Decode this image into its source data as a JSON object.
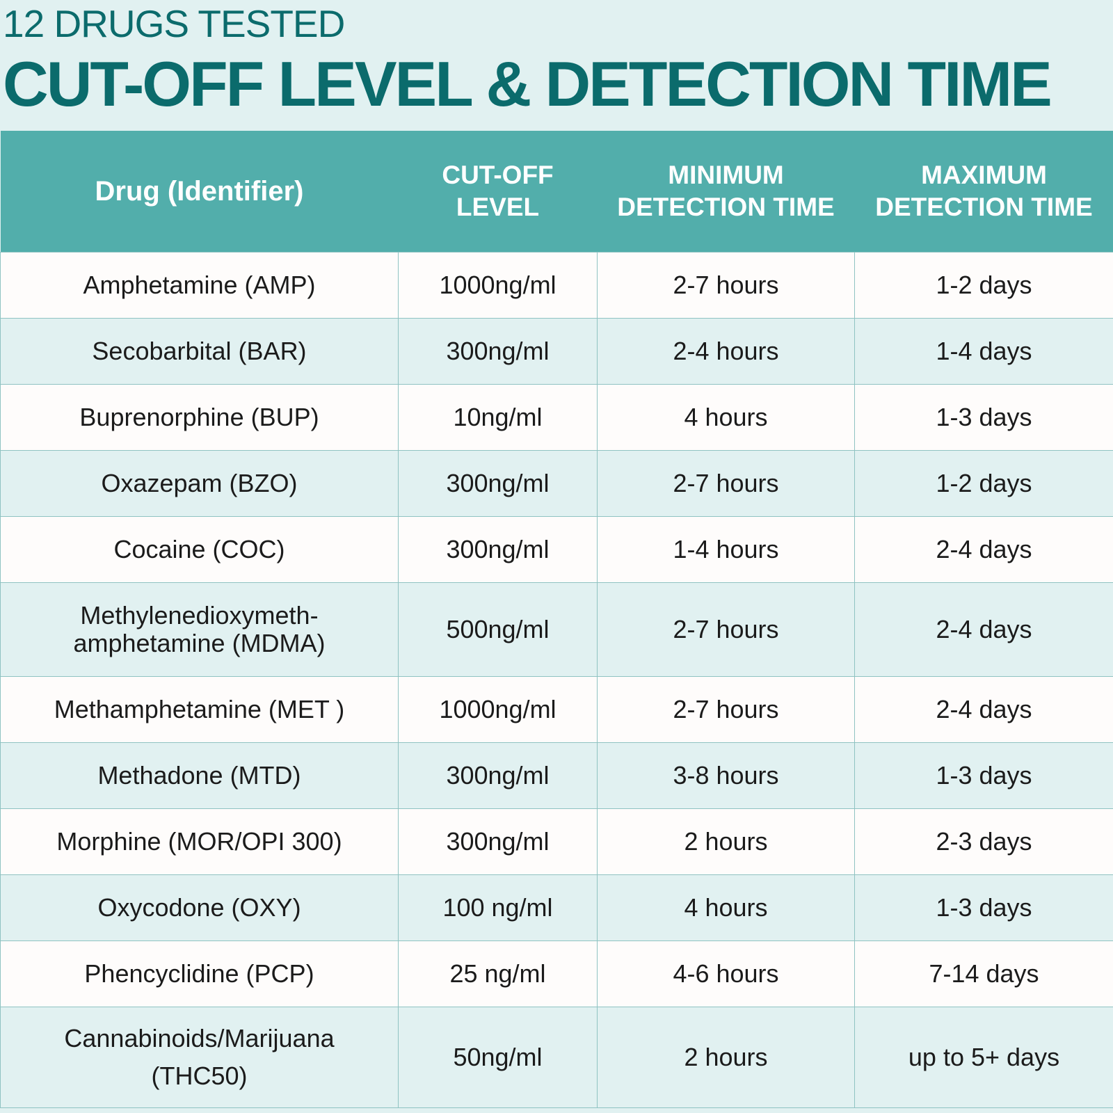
{
  "header": {
    "subtitle": "12 DRUGS TESTED",
    "title": "CUT-OFF LEVEL & DETECTION TIME"
  },
  "table": {
    "columns": [
      {
        "line1": "Drug (Identifier)",
        "line2": ""
      },
      {
        "line1": "CUT-OFF",
        "line2": "LEVEL"
      },
      {
        "line1": "MINIMUM",
        "line2": "DETECTION TIME"
      },
      {
        "line1": "MAXIMUM",
        "line2": "DETECTION TIME"
      }
    ],
    "rows": [
      {
        "drug": "Amphetamine (AMP)",
        "cutoff": "1000ng/ml",
        "min": "2-7 hours",
        "max": "1-2 days"
      },
      {
        "drug": "Secobarbital (BAR)",
        "cutoff": "300ng/ml",
        "min": "2-4 hours",
        "max": "1-4 days"
      },
      {
        "drug": "Buprenorphine (BUP)",
        "cutoff": "10ng/ml",
        "min": "4 hours",
        "max": "1-3 days"
      },
      {
        "drug": "Oxazepam (BZO)",
        "cutoff": "300ng/ml",
        "min": "2-7 hours",
        "max": "1-2 days"
      },
      {
        "drug": "Cocaine (COC)",
        "cutoff": "300ng/ml",
        "min": "1-4 hours",
        "max": "2-4 days"
      },
      {
        "drug": "Methylenedioxymeth-",
        "drug2": "amphetamine (MDMA)",
        "cutoff": "500ng/ml",
        "min": "2-7 hours",
        "max": "2-4 days"
      },
      {
        "drug": "Methamphetamine (MET )",
        "cutoff": "1000ng/ml",
        "min": "2-7 hours",
        "max": "2-4 days"
      },
      {
        "drug": "Methadone (MTD)",
        "cutoff": "300ng/ml",
        "min": "3-8 hours",
        "max": "1-3 days"
      },
      {
        "drug": "Morphine (MOR/OPI 300)",
        "cutoff": "300ng/ml",
        "min": "2 hours",
        "max": "2-3 days"
      },
      {
        "drug": "Oxycodone (OXY)",
        "cutoff": "100 ng/ml",
        "min": "4 hours",
        "max": "1-3 days"
      },
      {
        "drug": "Phencyclidine (PCP)",
        "cutoff": "25 ng/ml",
        "min": "4-6 hours",
        "max": "7-14 days"
      },
      {
        "drug": "Cannabinoids/Marijuana",
        "drug2": "(THC50)",
        "cutoff": "50ng/ml",
        "min": "2 hours",
        "max": "up to 5+ days"
      }
    ]
  },
  "colors": {
    "background": "#e1f1f1",
    "header_fill": "#52aeab",
    "title_text": "#0b6b6c",
    "row_white": "#fefcfb",
    "row_tint": "#e1f1f1"
  }
}
